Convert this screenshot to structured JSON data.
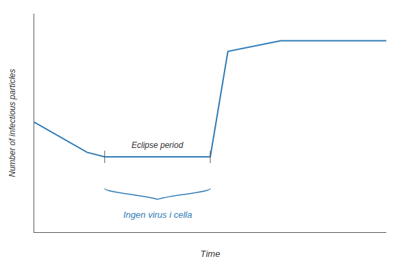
{
  "chart_data": {
    "type": "line",
    "x": [
      0.0,
      1.5,
      2.0,
      5.0,
      5.5,
      7.0,
      10.0
    ],
    "values": [
      0.38,
      0.18,
      0.15,
      0.15,
      0.85,
      0.92,
      0.92
    ],
    "color": "#2e7ab5",
    "xlabel": "Time",
    "ylabel": "Number of infectious particles",
    "xlim": [
      0,
      10
    ],
    "ylim": [
      -0.35,
      1.1
    ],
    "xticks": [],
    "yticks": [],
    "tick_labels": false,
    "grid": false,
    "annotations": [
      {
        "text": "Eclipse period",
        "x": [
          2.0,
          5.0
        ]
      },
      {
        "text": "Ingen virus i cella",
        "x": [
          2.0,
          5.0
        ]
      }
    ]
  }
}
